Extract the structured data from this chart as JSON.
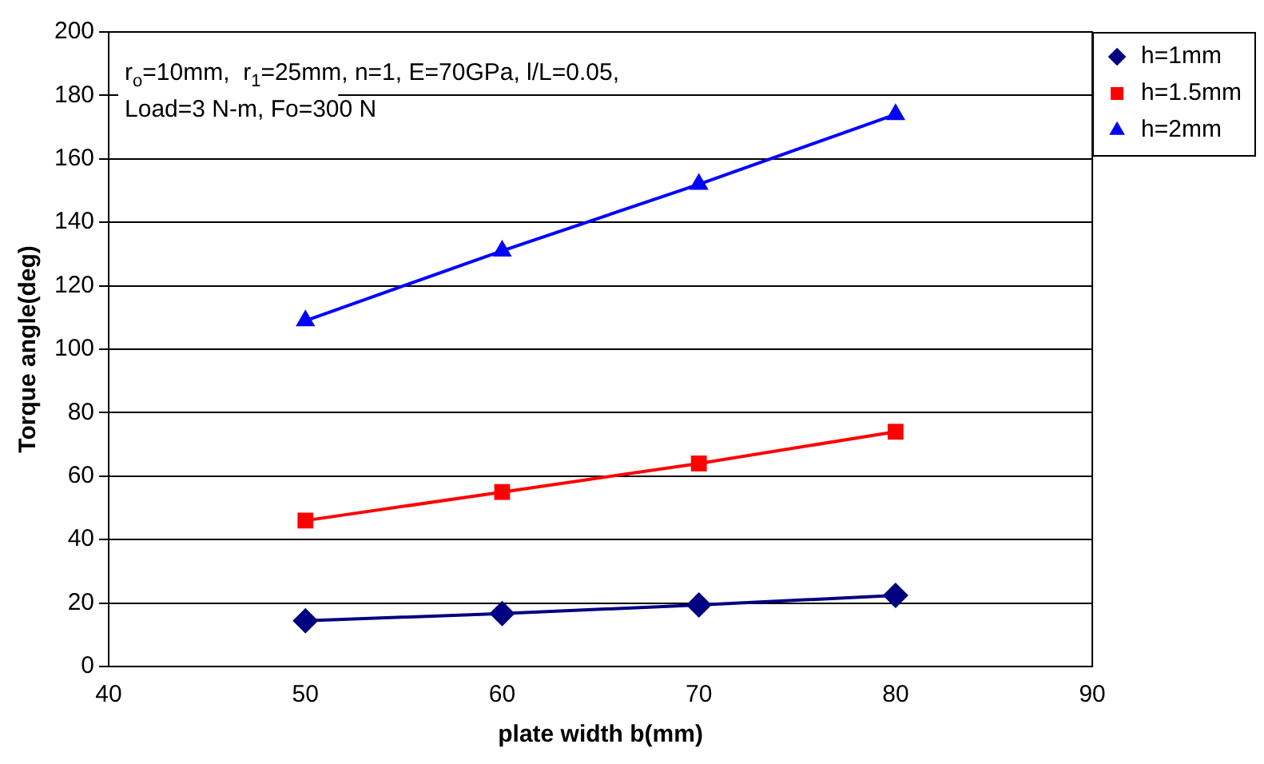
{
  "chart_data": {
    "type": "line",
    "xlabel": "plate width b(mm)",
    "ylabel": "Torque angle(deg)",
    "annotations": [
      "r$_{o}$=10mm,  r$_{1}$=25mm, n=1, E=70GPa, l/L=0.05,",
      "Load=3 N-m, Fo=300 N"
    ],
    "x": [
      50,
      60,
      70,
      80
    ],
    "series": [
      {
        "name": "h=1mm",
        "color": "#000080",
        "marker": "diamond",
        "values": [
          14.4,
          16.7,
          19.4,
          22.4
        ]
      },
      {
        "name": "h=1.5mm",
        "color": "#ff0000",
        "marker": "square",
        "values": [
          46,
          55,
          64,
          74
        ]
      },
      {
        "name": "h=2mm",
        "color": "#0000ff",
        "marker": "triangle",
        "values": [
          109,
          131,
          152,
          174
        ]
      }
    ],
    "xlim": [
      40,
      90
    ],
    "xticks": [
      40,
      50,
      60,
      70,
      80,
      90
    ],
    "ylim": [
      0,
      200
    ],
    "yticks": [
      0,
      20,
      40,
      60,
      80,
      100,
      120,
      140,
      160,
      180,
      200
    ],
    "grid": "y",
    "legend": "top right",
    "line_style": "solid"
  }
}
